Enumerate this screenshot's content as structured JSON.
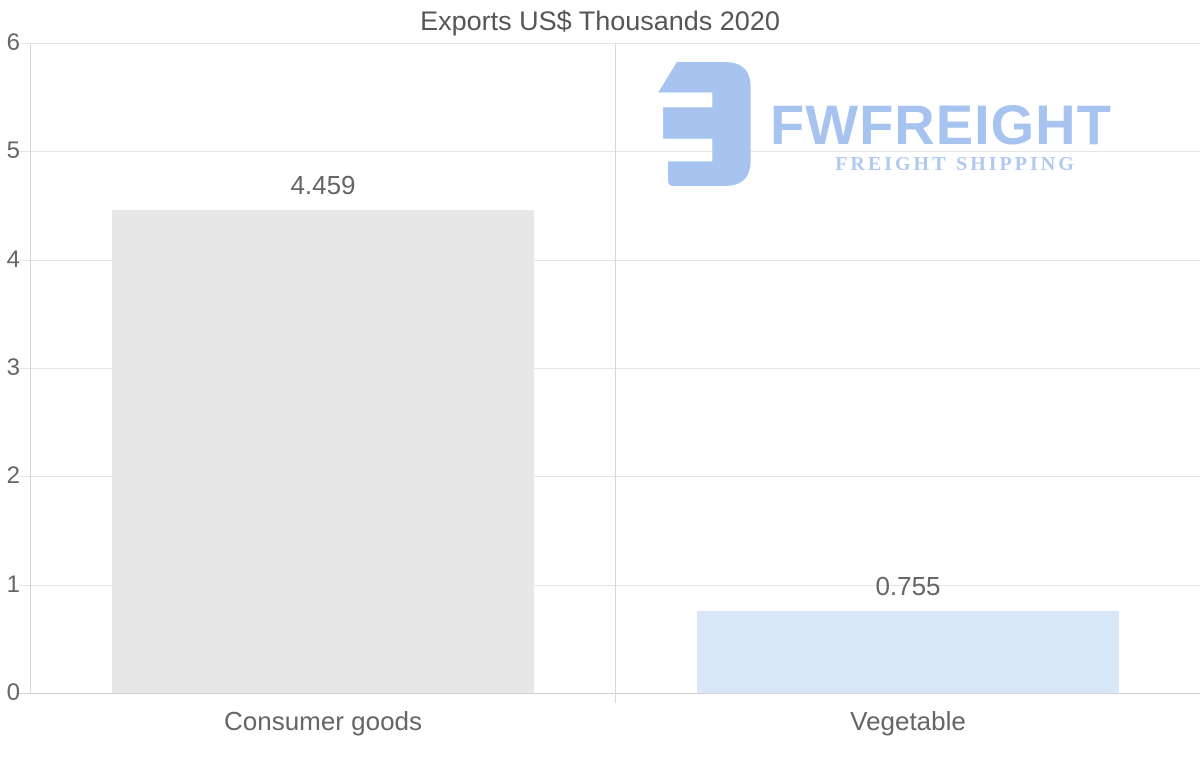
{
  "chart_data": {
    "type": "bar",
    "title": "Exports US$ Thousands 2020",
    "categories": [
      "Consumer goods",
      "Vegetable"
    ],
    "values": [
      4.459,
      0.755
    ],
    "value_labels": [
      "4.459",
      "0.755"
    ],
    "bar_colors": [
      "#e7e7e7",
      "#d8e7f8"
    ],
    "xlabel": "",
    "ylabel": "",
    "ylim": [
      0,
      6
    ],
    "yticks": [
      0,
      1,
      2,
      3,
      4,
      5,
      6
    ],
    "grid": true,
    "legend": false
  },
  "watermark": {
    "brand": "FWFREIGHT",
    "tagline": "FREIGHT SHIPPING"
  },
  "colors": {
    "bar_consumer_goods": "#e7e7e7",
    "bar_vegetable": "#d8e7f8",
    "logo_blue": "#a6c4ef",
    "logo_tagline_blue": "#b0c9f0",
    "label_gray": "#666666",
    "title_gray": "#565656",
    "gridline": "#e6e6e6",
    "axis_line": "#d8d8d8"
  }
}
